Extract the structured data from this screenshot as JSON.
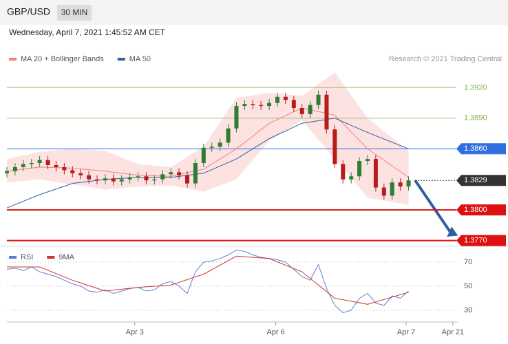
{
  "header": {
    "symbol": "GBP/USD",
    "timeframe": "30 MIN",
    "timestamp": "Wednesday, April 7, 2021 1:45:52 AM CET",
    "copyright": "Research © 2021 Trading Central"
  },
  "chart_data": [
    {
      "type": "candlestick",
      "x": [
        0,
        1,
        2,
        3,
        4,
        5,
        6,
        7,
        8,
        9,
        10,
        11,
        12,
        13,
        14,
        15,
        16,
        17,
        18,
        19,
        20,
        21,
        22,
        23,
        24,
        25,
        26,
        27,
        28,
        29,
        30,
        31,
        32,
        33,
        34,
        35,
        36,
        37,
        38,
        39,
        40,
        41,
        42,
        43,
        44,
        45,
        46,
        47,
        48,
        49
      ],
      "open": [
        1.3836,
        1.3838,
        1.3842,
        1.3845,
        1.3846,
        1.3849,
        1.3844,
        1.3842,
        1.3839,
        1.3836,
        1.3834,
        1.383,
        1.3829,
        1.3831,
        1.3828,
        1.383,
        1.3832,
        1.3833,
        1.3829,
        1.383,
        1.3835,
        1.3837,
        1.3834,
        1.3826,
        1.3846,
        1.3861,
        1.3862,
        1.3866,
        1.388,
        1.3902,
        1.3904,
        1.3903,
        1.3902,
        1.3905,
        1.3911,
        1.3908,
        1.39,
        1.3894,
        1.3903,
        1.3913,
        1.3879,
        1.3845,
        1.383,
        1.3833,
        1.3848,
        1.385,
        1.3822,
        1.3814,
        1.3827,
        1.3823
      ],
      "high": [
        1.3842,
        1.3846,
        1.3849,
        1.385,
        1.3853,
        1.3853,
        1.3848,
        1.3846,
        1.3843,
        1.384,
        1.3838,
        1.3834,
        1.3835,
        1.3835,
        1.3834,
        1.3836,
        1.3837,
        1.3837,
        1.3834,
        1.3839,
        1.3841,
        1.3841,
        1.3838,
        1.385,
        1.3865,
        1.3866,
        1.387,
        1.3884,
        1.3906,
        1.3908,
        1.3908,
        1.3907,
        1.3909,
        1.3915,
        1.3915,
        1.3912,
        1.3904,
        1.3907,
        1.3917,
        1.3917,
        1.3883,
        1.3849,
        1.3837,
        1.3852,
        1.3854,
        1.3854,
        1.3826,
        1.3831,
        1.3831,
        1.3833
      ],
      "low": [
        1.3832,
        1.3834,
        1.3838,
        1.3841,
        1.3842,
        1.384,
        1.3838,
        1.3835,
        1.3832,
        1.383,
        1.3826,
        1.3825,
        1.3825,
        1.3824,
        1.3824,
        1.3826,
        1.3828,
        1.3825,
        1.3825,
        1.3826,
        1.3831,
        1.383,
        1.3822,
        1.3822,
        1.3842,
        1.3857,
        1.3858,
        1.3862,
        1.3876,
        1.3898,
        1.3899,
        1.3898,
        1.3898,
        1.3901,
        1.3904,
        1.3896,
        1.389,
        1.389,
        1.3899,
        1.3875,
        1.3841,
        1.3826,
        1.3826,
        1.3829,
        1.3844,
        1.3818,
        1.381,
        1.381,
        1.3819,
        1.3819
      ],
      "close": [
        1.3838,
        1.3842,
        1.3845,
        1.3846,
        1.3849,
        1.3844,
        1.3842,
        1.3839,
        1.3836,
        1.3834,
        1.383,
        1.3829,
        1.3831,
        1.3828,
        1.383,
        1.3832,
        1.3833,
        1.3829,
        1.383,
        1.3835,
        1.3837,
        1.3834,
        1.3826,
        1.3846,
        1.3861,
        1.3862,
        1.3866,
        1.388,
        1.3902,
        1.3904,
        1.3903,
        1.3902,
        1.3905,
        1.3911,
        1.3908,
        1.39,
        1.3894,
        1.3903,
        1.3913,
        1.3879,
        1.3845,
        1.383,
        1.3833,
        1.3848,
        1.385,
        1.3822,
        1.3814,
        1.3827,
        1.3823,
        1.3829
      ],
      "up_color": "#2e7d32",
      "down_color": "#b71c1c",
      "series": [
        {
          "name": "MA 20 + Bollinger Bands",
          "color": "#f08080",
          "band_color": "#fde2e2",
          "x": [
            0,
            4,
            8,
            12,
            16,
            20,
            24,
            28,
            32,
            36,
            40,
            44,
            49
          ],
          "values": [
            1.3838,
            1.3842,
            1.3841,
            1.3838,
            1.3834,
            1.3833,
            1.384,
            1.386,
            1.3885,
            1.39,
            1.3893,
            1.386,
            1.3832
          ],
          "upper": [
            1.385,
            1.3857,
            1.386,
            1.3858,
            1.3845,
            1.3842,
            1.3862,
            1.391,
            1.3915,
            1.3912,
            1.3935,
            1.389,
            1.3858
          ],
          "lower": [
            1.3827,
            1.383,
            1.3825,
            1.382,
            1.3823,
            1.3824,
            1.3818,
            1.383,
            1.3868,
            1.3888,
            1.385,
            1.3812,
            1.3805
          ]
        },
        {
          "name": "MA 50",
          "color": "#2f5f9f",
          "x": [
            0,
            4,
            8,
            12,
            16,
            20,
            24,
            28,
            32,
            36,
            40,
            44,
            49
          ],
          "values": [
            1.3802,
            1.3815,
            1.3826,
            1.383,
            1.3832,
            1.3832,
            1.3836,
            1.385,
            1.387,
            1.3885,
            1.389,
            1.3876,
            1.386
          ]
        }
      ],
      "levels": [
        {
          "value": 1.392,
          "label": "1.3920",
          "color": "#7cb342",
          "tagged": false
        },
        {
          "value": 1.389,
          "label": "1.3890",
          "color": "#7cb342",
          "tagged": false
        },
        {
          "value": 1.386,
          "label": "1.3860",
          "color": "#2f6fe0",
          "tagged": true
        },
        {
          "value": 1.3829,
          "label": "1.3829",
          "color": "#333333",
          "tagged": true,
          "dotted": true
        },
        {
          "value": 1.38,
          "label": "1.3800",
          "color": "#dd1111",
          "tagged": true
        },
        {
          "value": 1.377,
          "label": "1.3770",
          "color": "#dd1111",
          "tagged": true
        }
      ],
      "xlim": [
        0,
        55
      ],
      "ylim": [
        1.3765,
        1.3979
      ]
    },
    {
      "type": "line",
      "series": [
        {
          "name": "RSI",
          "color": "#5b7fd6",
          "x": [
            0,
            1,
            2,
            3,
            4,
            5,
            6,
            7,
            8,
            9,
            10,
            11,
            12,
            13,
            14,
            15,
            16,
            17,
            18,
            19,
            20,
            21,
            22,
            23,
            24,
            25,
            26,
            27,
            28,
            29,
            30,
            31,
            32,
            33,
            34,
            35,
            36,
            37,
            38,
            39,
            40,
            41,
            42,
            43,
            44,
            45,
            46,
            47,
            48,
            49
          ],
          "values": [
            64,
            65,
            63,
            66,
            62,
            60,
            58,
            55,
            52,
            50,
            46,
            45,
            47,
            44,
            46,
            48,
            49,
            46,
            47,
            52,
            54,
            50,
            44,
            62,
            70,
            71,
            73,
            76,
            80,
            79,
            76,
            74,
            73,
            72,
            70,
            64,
            58,
            55,
            68,
            48,
            34,
            28,
            30,
            40,
            44,
            36,
            34,
            42,
            40,
            46
          ]
        },
        {
          "name": "9MA",
          "color": "#d32f2f",
          "x": [
            0,
            4,
            8,
            12,
            16,
            20,
            24,
            28,
            32,
            36,
            40,
            44,
            49
          ],
          "values": [
            66,
            66,
            55,
            46,
            49,
            51,
            60,
            75,
            73,
            62,
            40,
            35,
            45
          ]
        }
      ],
      "xlim": [
        0,
        55
      ],
      "ylim": [
        22,
        82
      ],
      "yticks": [
        70,
        50,
        30
      ],
      "xticks": [
        {
          "value": 15.6,
          "label": "Apr 3"
        },
        {
          "value": 32.8,
          "label": "Apr 6"
        },
        {
          "value": 48.7,
          "label": "Apr 7"
        },
        {
          "value": 54.4,
          "label": "Apr 21"
        }
      ]
    }
  ]
}
